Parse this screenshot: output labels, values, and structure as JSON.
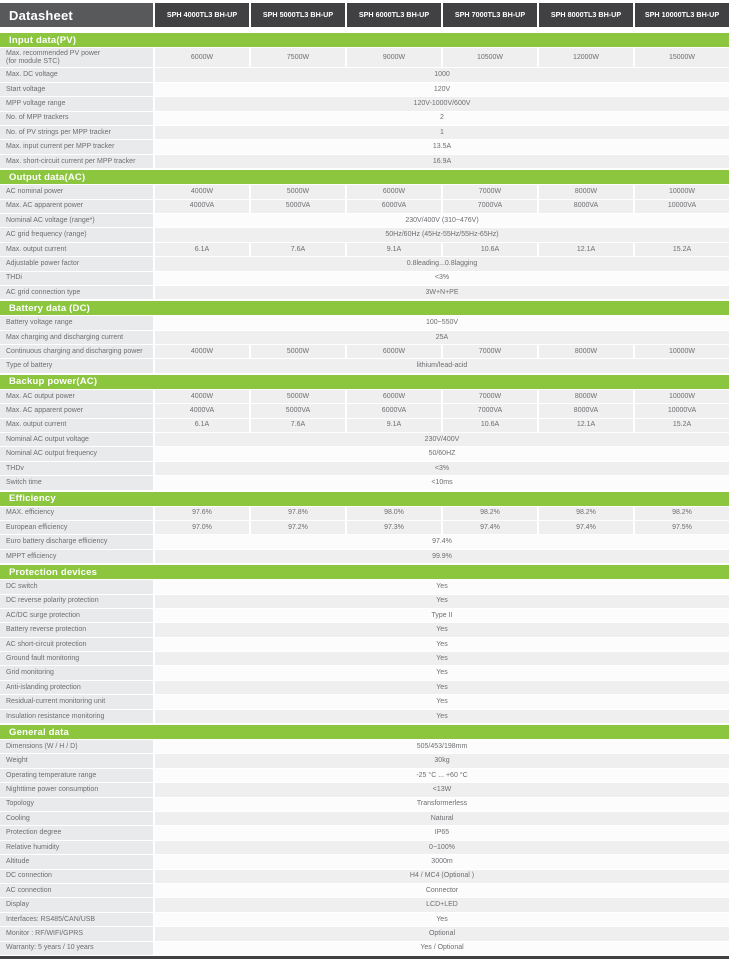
{
  "header": {
    "title": "Datasheet",
    "models": [
      "SPH 4000TL3 BH-UP",
      "SPH 5000TL3 BH-UP",
      "SPH 6000TL3 BH-UP",
      "SPH 7000TL3 BH-UP",
      "SPH 8000TL3 BH-UP",
      "SPH 10000TL3 BH-UP"
    ]
  },
  "colors": {
    "accent_green": "#8CC63F",
    "header_dark": "#414042",
    "title_gray": "#58595B",
    "text_gray": "#6D6E71",
    "label_bg": "#E9EAEB",
    "stripe_bg": "#EFEFF0"
  },
  "sections": [
    {
      "title": "Input data(PV)",
      "rows": [
        {
          "label": "Max. recommended PV power",
          "label_sub": "(for module STC)",
          "values": [
            "6000W",
            "7500W",
            "9000W",
            "10500W",
            "12000W",
            "15000W"
          ]
        },
        {
          "label": "Max. DC voltage",
          "value": "1000"
        },
        {
          "label": "Start voltage",
          "value": "120V"
        },
        {
          "label": "MPP voltage range",
          "value": "120V-1000V/600V"
        },
        {
          "label": "No. of MPP trackers",
          "value": "2"
        },
        {
          "label": "No. of PV strings per MPP tracker",
          "value": "1"
        },
        {
          "label": "Max. input current per MPP tracker",
          "value": "13.5A"
        },
        {
          "label": "Max. short-circuit current per MPP tracker",
          "value": "16.9A"
        }
      ]
    },
    {
      "title": "Output data(AC)",
      "rows": [
        {
          "label": "AC nominal power",
          "values": [
            "4000W",
            "5000W",
            "6000W",
            "7000W",
            "8000W",
            "10000W"
          ]
        },
        {
          "label": "Max. AC apparent power",
          "values": [
            "4000VA",
            "5000VA",
            "6000VA",
            "7000VA",
            "8000VA",
            "10000VA"
          ]
        },
        {
          "label": "Nominal AC voltage (range*)",
          "value": "230V/400V (310~476V)"
        },
        {
          "label": "AC grid frequency (range)",
          "value": "50Hz/60Hz (45Hz-55Hz/55Hz-65Hz)"
        },
        {
          "label": "Max. output current",
          "values": [
            "6.1A",
            "7.6A",
            "9.1A",
            "10.6A",
            "12.1A",
            "15.2A"
          ]
        },
        {
          "label": "Adjustable power factor",
          "value": "0.8leading...0.8lagging"
        },
        {
          "label": "THDi",
          "value": "<3%"
        },
        {
          "label": "AC grid connection type",
          "value": "3W+N+PE"
        }
      ]
    },
    {
      "title": "Battery data (DC)",
      "rows": [
        {
          "label": "Battery voltage range",
          "value": "100~550V"
        },
        {
          "label": "Max charging and discharging current",
          "value": "25A"
        },
        {
          "label": "Continuous charging and discharging power",
          "values": [
            "4000W",
            "5000W",
            "6000W",
            "7000W",
            "8000W",
            "10000W"
          ]
        },
        {
          "label": "Type of battery",
          "value": "lithium/lead-acid"
        }
      ]
    },
    {
      "title": "Backup power(AC)",
      "rows": [
        {
          "label": "Max. AC output power",
          "values": [
            "4000W",
            "5000W",
            "6000W",
            "7000W",
            "8000W",
            "10000W"
          ]
        },
        {
          "label": "Max. AC apparent power",
          "values": [
            "4000VA",
            "5000VA",
            "6000VA",
            "7000VA",
            "8000VA",
            "10000VA"
          ]
        },
        {
          "label": "Max. output current",
          "values": [
            "6.1A",
            "7.6A",
            "9.1A",
            "10.6A",
            "12.1A",
            "15.2A"
          ]
        },
        {
          "label": "Nominal AC output voltage",
          "value": "230V/400V"
        },
        {
          "label": "Nominal AC output frequency",
          "value": "50/60HZ"
        },
        {
          "label": "THDv",
          "value": "<3%"
        },
        {
          "label": "Switch time",
          "value": "<10ms"
        }
      ]
    },
    {
      "title": "Efficiency",
      "rows": [
        {
          "label": "MAX. efficiency",
          "values": [
            "97.6%",
            "97.8%",
            "98.0%",
            "98.2%",
            "98.2%",
            "98.2%"
          ]
        },
        {
          "label": "European efficiency",
          "values": [
            "97.0%",
            "97.2%",
            "97.3%",
            "97.4%",
            "97.4%",
            "97.5%"
          ]
        },
        {
          "label": "Euro battery discharge efficiency",
          "value": "97.4%"
        },
        {
          "label": "MPPT efficiency",
          "value": "99.9%"
        }
      ]
    },
    {
      "title": "Protection devices",
      "rows": [
        {
          "label": "DC switch",
          "value": "Yes"
        },
        {
          "label": "DC reverse polarity protection",
          "value": "Yes"
        },
        {
          "label": "AC/DC surge protection",
          "value": "Type II"
        },
        {
          "label": "Battery reverse protection",
          "value": "Yes"
        },
        {
          "label": "AC short-circuit protection",
          "value": "Yes"
        },
        {
          "label": "Ground fault monitoring",
          "value": "Yes"
        },
        {
          "label": "Grid monitoring",
          "value": "Yes"
        },
        {
          "label": "Anti-islanding protection",
          "value": "Yes"
        },
        {
          "label": "Residual-current monitoring unit",
          "value": "Yes"
        },
        {
          "label": "Insulation resistance monitoring",
          "value": "Yes"
        }
      ]
    },
    {
      "title": "General data",
      "rows": [
        {
          "label": "Dimensions (W / H / D)",
          "value": "505/453/198mm"
        },
        {
          "label": "Weight",
          "value": "30kg"
        },
        {
          "label": "Operating temperature range",
          "value": "-25 °C ... +60 °C"
        },
        {
          "label": "Nighttime power consumption",
          "value": "<13W"
        },
        {
          "label": "Topology",
          "value": "Transformerless"
        },
        {
          "label": "Cooling",
          "value": "Natural"
        },
        {
          "label": "Protection degree",
          "value": "IP65"
        },
        {
          "label": "Relative humidity",
          "value": "0~100%"
        },
        {
          "label": "Altitude",
          "value": "3000m"
        },
        {
          "label": "DC connection",
          "value": "H4 / MC4 (Optional )"
        },
        {
          "label": "AC connection",
          "value": "Connector"
        },
        {
          "label": "Display",
          "value": "LCD+LED"
        },
        {
          "label": "Interfaces: RS485/CAN/USB",
          "value": "Yes"
        },
        {
          "label": "Monitor : RF/WIFI/GPRS",
          "value": "Optional"
        },
        {
          "label": "Warranty: 5 years / 10 years",
          "value": "Yes / Optional"
        }
      ]
    }
  ]
}
